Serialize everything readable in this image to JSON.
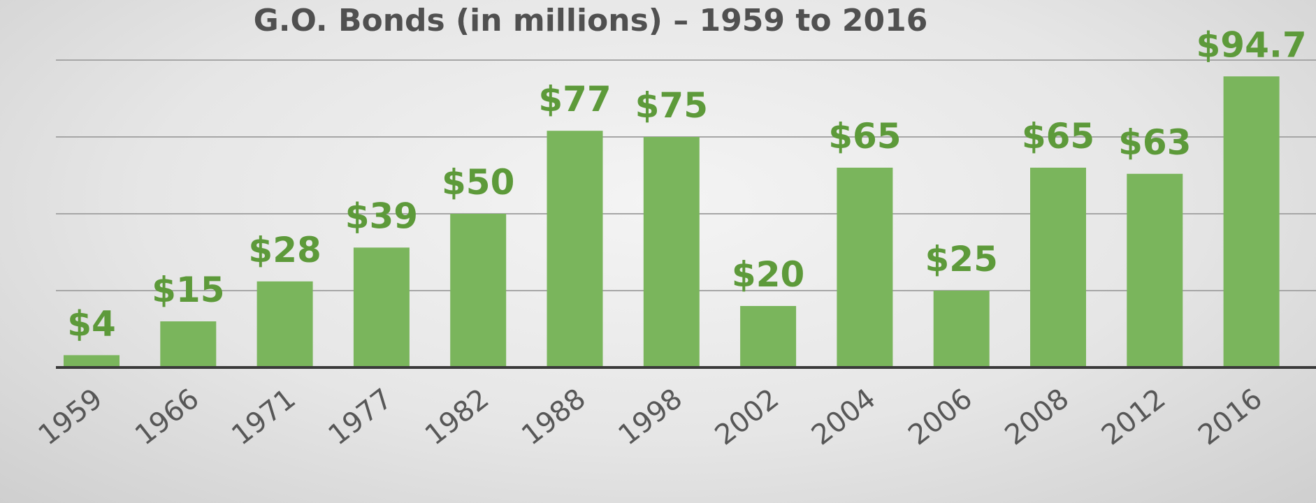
{
  "chart_data": {
    "type": "bar",
    "title": "G.O. Bonds (in millions) – 1959 to 2016",
    "categories": [
      "1959",
      "1966",
      "1971",
      "1977",
      "1982",
      "1988",
      "1998",
      "2002",
      "2004",
      "2006",
      "2008",
      "2012",
      "2016"
    ],
    "values": [
      4,
      15,
      28,
      39,
      50,
      77,
      75,
      20,
      65,
      25,
      65,
      63,
      94.7
    ],
    "data_labels": [
      "$4",
      "$15",
      "$28",
      "$39",
      "$50",
      "$77",
      "$75",
      "$20",
      "$65",
      "$25",
      "$65",
      "$63",
      "$94.7"
    ],
    "xlabel": "",
    "ylabel": "",
    "ylim": [
      0,
      100
    ],
    "grid": true,
    "colors": {
      "bar": "#7ab55c",
      "label": "#5d9a3a",
      "grid": "#a6a6a6",
      "axis": "#3a3a3a",
      "title": "#505050",
      "tick": "#575757"
    }
  }
}
